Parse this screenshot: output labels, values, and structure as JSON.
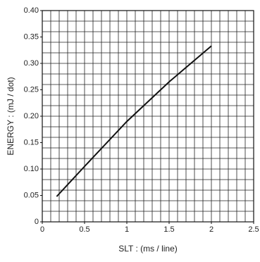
{
  "chart_data": {
    "type": "line",
    "x_label": "SLT : (ms / line)",
    "y_label": "ENERGY : (mJ / dot)",
    "series": [
      {
        "color": "#111111",
        "x": [
          0.17,
          0.5,
          1,
          1.5,
          2
        ],
        "values": [
          0.048,
          0.105,
          0.19,
          0.265,
          0.333
        ]
      }
    ],
    "xlim": [
      0,
      2.5
    ],
    "xticks": [
      0,
      0.5,
      1,
      1.5,
      2,
      2.5
    ],
    "ylim": [
      0,
      0.4
    ],
    "yticks": [
      0,
      0.05,
      {
        "value": 0.1,
        "label": "0.10"
      },
      0.15,
      {
        "value": 0.2,
        "label": "0.20"
      },
      0.25,
      {
        "value": 0.3,
        "label": "0.30"
      },
      0.35,
      {
        "value": 0.4,
        "label": "0.40"
      }
    ],
    "xgrid": [
      0,
      0.1,
      0.2,
      0.3,
      0.4,
      0.5,
      0.6,
      0.7,
      0.8,
      0.9,
      1,
      1.1,
      1.2,
      1.3,
      1.4,
      1.5,
      1.6,
      1.7,
      1.8,
      1.9,
      2,
      2.1,
      2.2,
      2.3,
      2.4,
      2.5
    ],
    "ygrid": [
      0,
      0.02,
      0.04,
      0.06,
      0.08,
      0.1,
      0.12,
      0.14,
      0.16,
      0.18,
      0.2,
      0.22,
      0.24,
      0.26,
      0.28,
      0.3,
      0.32,
      0.34,
      0.36,
      0.38,
      0.4
    ],
    "grid": true
  }
}
